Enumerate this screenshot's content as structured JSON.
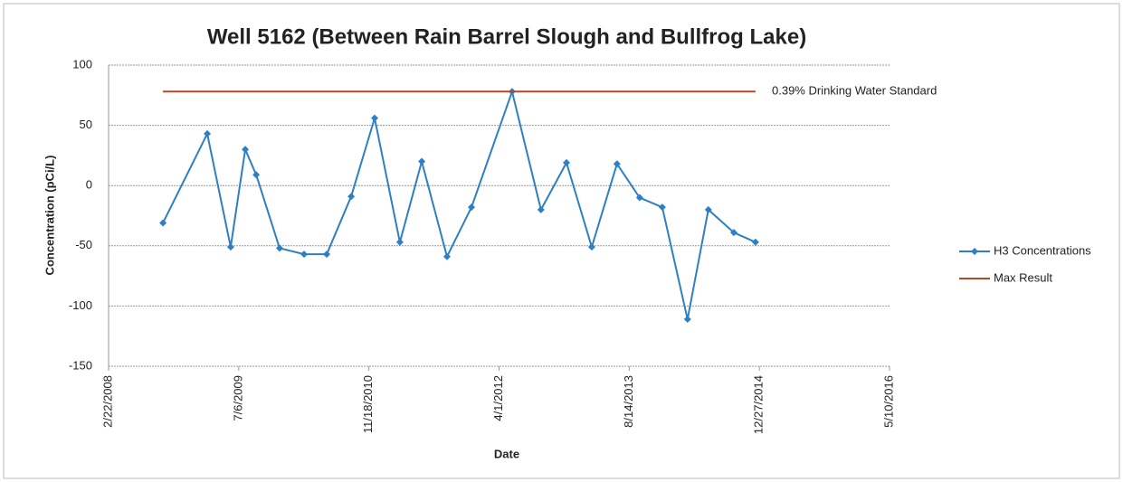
{
  "chart_data": {
    "type": "line",
    "title": "Well 5162 (Between Rain Barrel Slough and Bullfrog Lake)",
    "xlabel": "Date",
    "ylabel": "Concentration (pCi/L)",
    "annotation": "0.39% Drinking Water Standard",
    "series": [
      {
        "name": "H3 Concentrations",
        "color": "#2e7fc4",
        "marker": "diamond",
        "x": [
          "2008-09-18",
          "2009-03-07",
          "2009-06-05",
          "2009-07-31",
          "2009-09-11",
          "2009-12-10",
          "2010-03-14",
          "2010-06-09",
          "2010-09-11",
          "2010-12-10",
          "2011-03-17",
          "2011-06-09",
          "2011-09-14",
          "2011-12-17",
          "2012-05-21",
          "2012-09-09",
          "2012-12-16",
          "2013-03-23",
          "2013-06-28",
          "2013-09-23",
          "2013-12-19",
          "2014-03-26",
          "2014-06-14",
          "2014-09-20",
          "2014-12-12"
        ],
        "values": [
          -31,
          43,
          -51,
          30,
          9,
          -52,
          -57,
          -57,
          -9,
          56,
          -47,
          20,
          -59,
          -18,
          78,
          -20,
          19,
          -51,
          18,
          -10,
          -18,
          -111,
          -20,
          -39,
          -47
        ]
      },
      {
        "name": "Max Result",
        "color": "#b5472a",
        "marker": "none",
        "x": [
          "2008-09-18",
          "2014-12-12"
        ],
        "values": [
          78,
          78
        ]
      }
    ],
    "xlim": [
      "2008-02-22",
      "2016-05-10"
    ],
    "xticks": [
      {
        "value": "2008-02-22",
        "label": "2/22/2008"
      },
      {
        "value": "2009-07-06",
        "label": "7/6/2009"
      },
      {
        "value": "2010-11-18",
        "label": "11/18/2010"
      },
      {
        "value": "2012-04-01",
        "label": "4/1/2012"
      },
      {
        "value": "2013-08-14",
        "label": "8/14/2013"
      },
      {
        "value": "2014-12-27",
        "label": "12/27/2014"
      },
      {
        "value": "2016-05-10",
        "label": "5/10/2016"
      }
    ],
    "ylim": [
      -150,
      100
    ],
    "yticks": [
      -150,
      -100,
      -50,
      0,
      50,
      100
    ],
    "grid": true,
    "legend": "right"
  }
}
